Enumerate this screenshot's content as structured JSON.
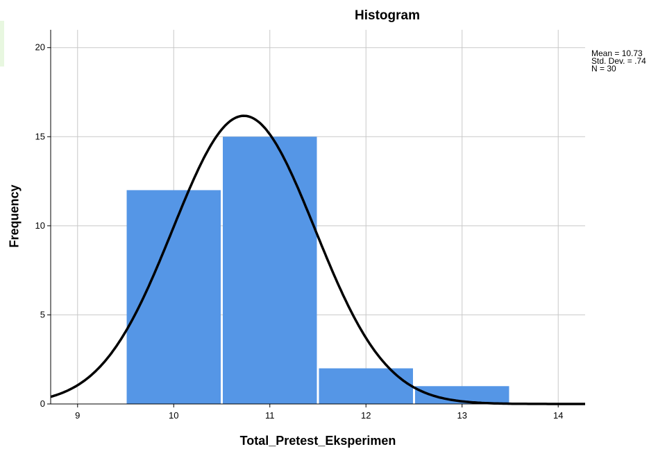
{
  "chart_data": {
    "type": "bar",
    "title": "Histogram",
    "xlabel": "Total_Pretest_Eksperimen",
    "ylabel": "Frequency",
    "x_ticks": [
      "9",
      "10",
      "11",
      "12",
      "13",
      "14"
    ],
    "y_ticks": [
      "0",
      "5",
      "10",
      "15",
      "20"
    ],
    "xlim": [
      8.72,
      14.28
    ],
    "ylim": [
      0,
      21
    ],
    "grid": true,
    "bins": [
      {
        "center": 10,
        "value": 12
      },
      {
        "center": 11,
        "value": 15
      },
      {
        "center": 12,
        "value": 2
      },
      {
        "center": 13,
        "value": 1
      }
    ],
    "normal_curve": {
      "mean": 10.73,
      "std": 0.74,
      "n": 30,
      "bin_width": 1
    },
    "stats_lines": [
      "Mean = 10.73",
      "Std. Dev. = .74",
      "N = 30"
    ],
    "colors": {
      "bar": "#5596e6",
      "curve": "#000000",
      "grid": "#c8c8c8"
    }
  }
}
